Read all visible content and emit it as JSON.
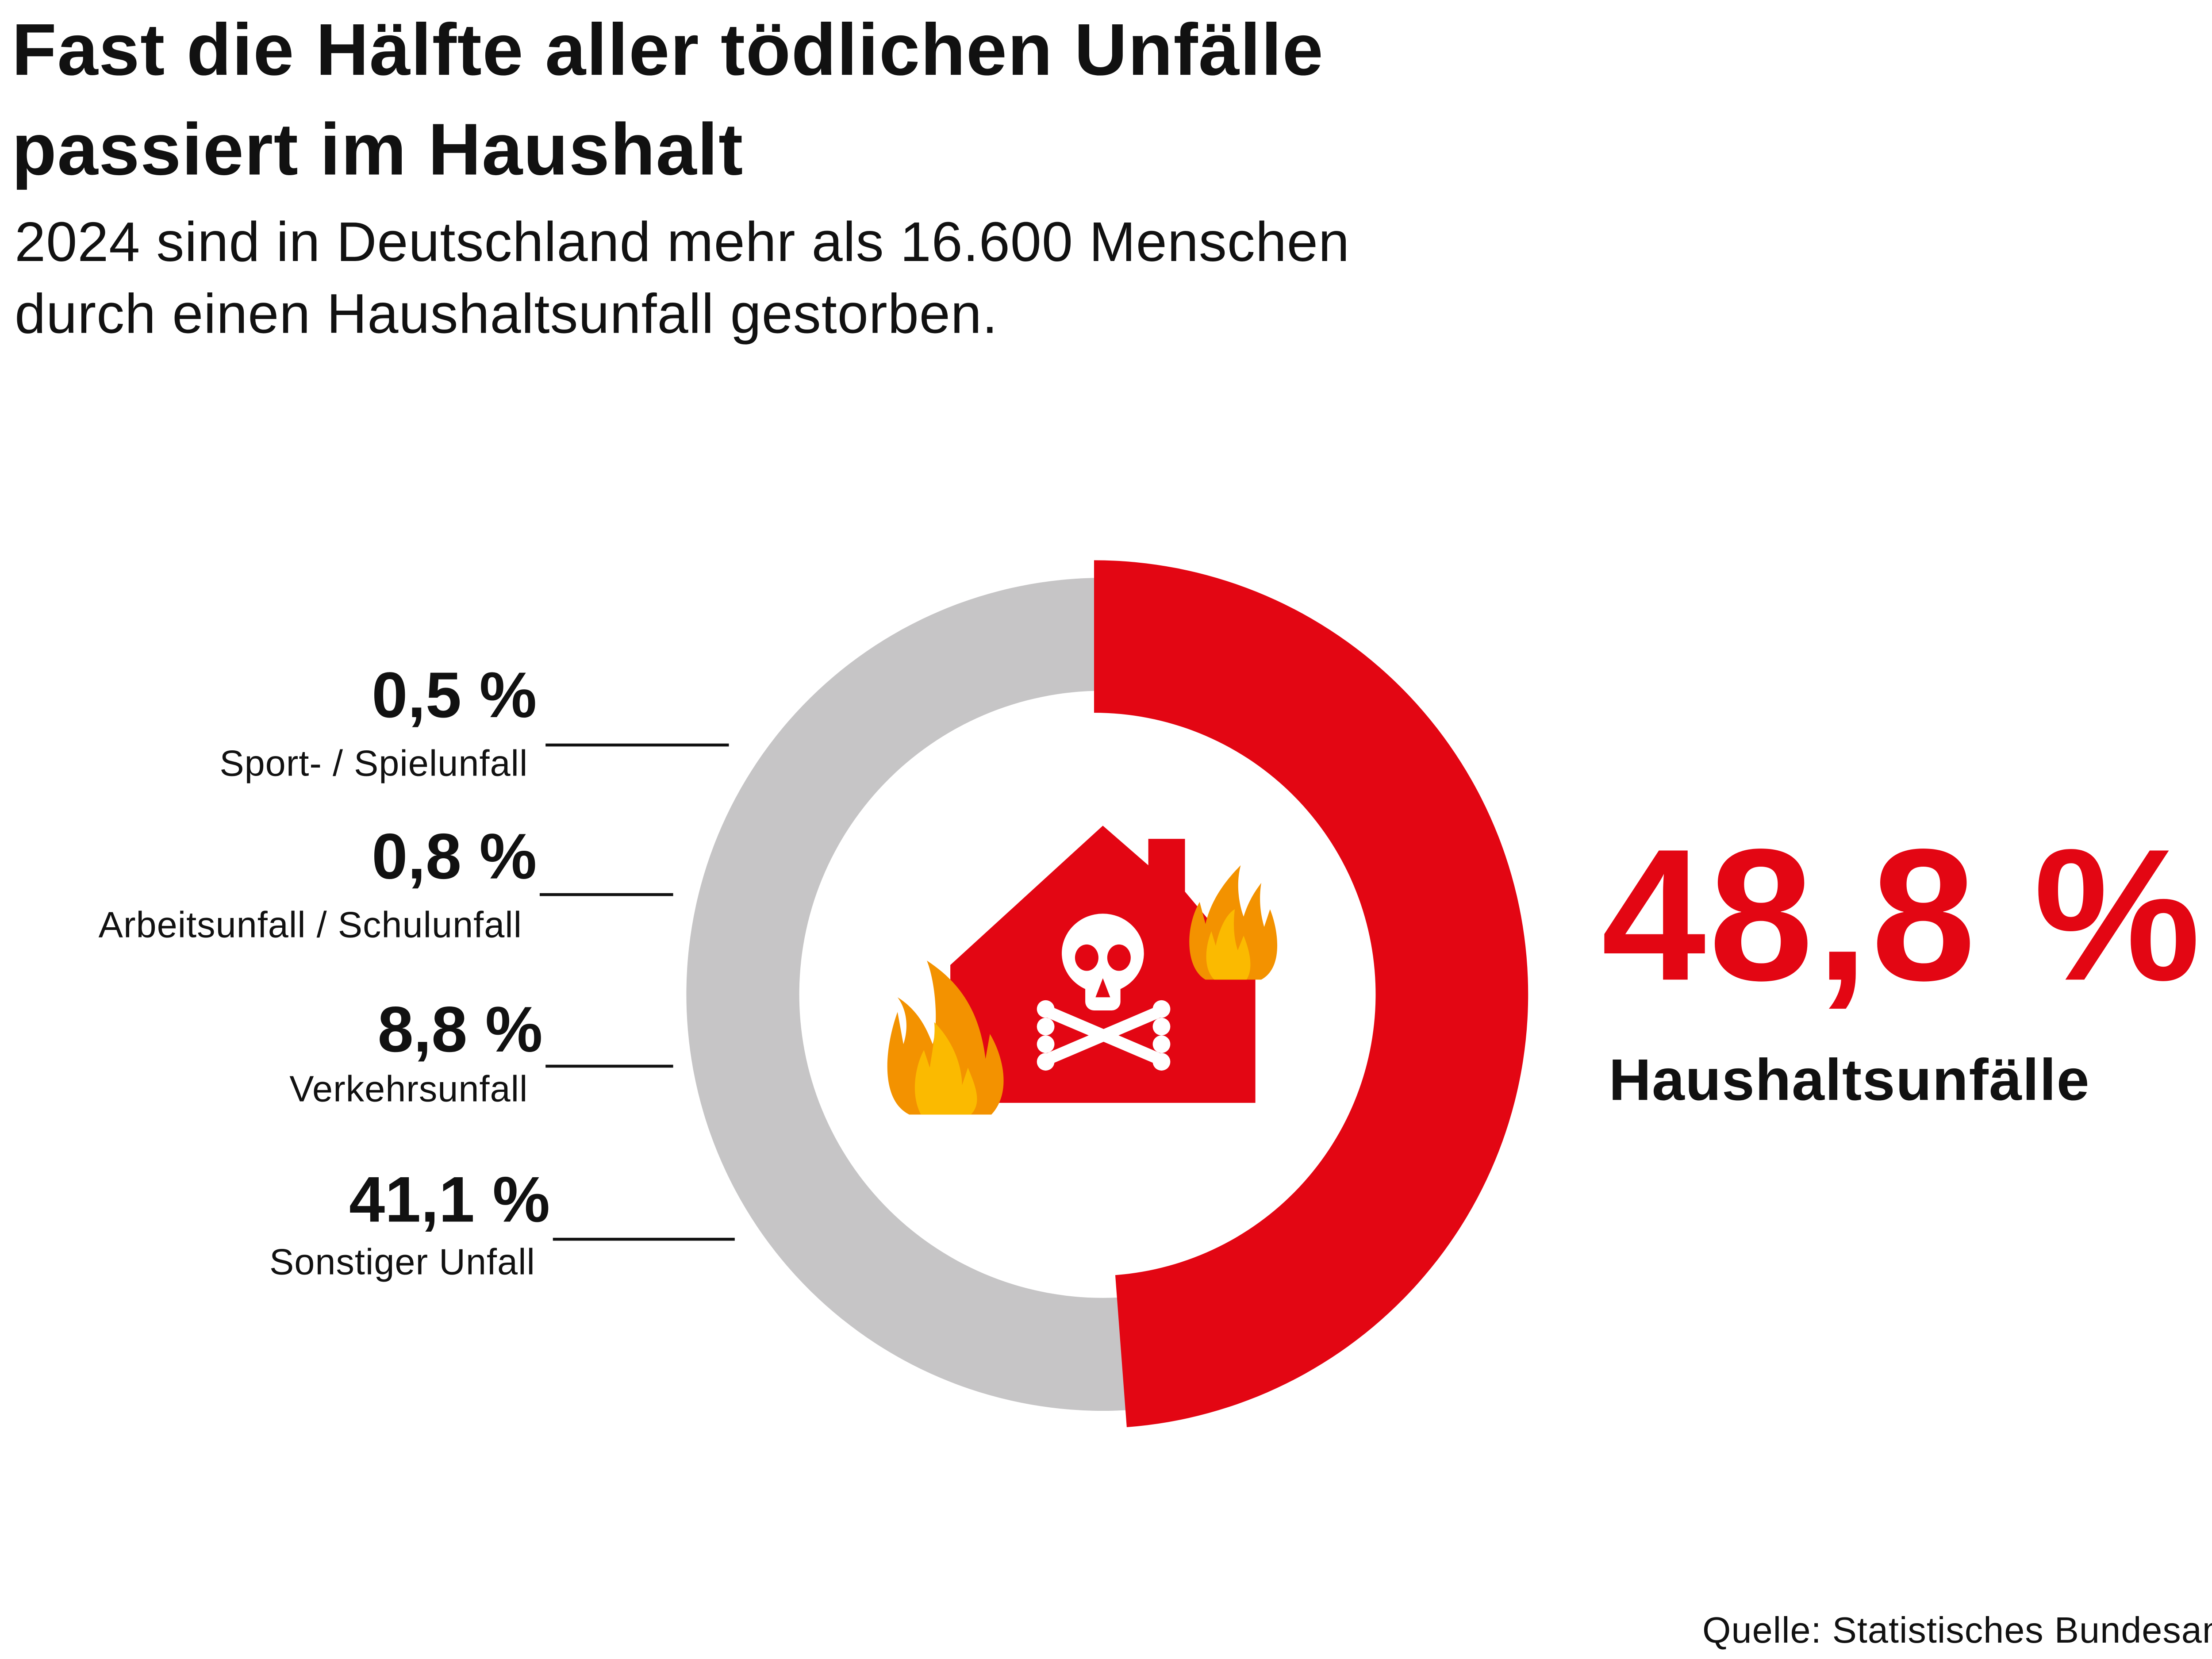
{
  "header": {
    "title_line1": "Fast die Hälfte aller tödlichen Unfälle",
    "title_line2": "passiert im Haushalt",
    "subtitle_line1": "2024 sind in Deutschland mehr als 16.600 Menschen",
    "subtitle_line2": "durch einen Haushaltsunfall gestorben."
  },
  "chart_data": {
    "type": "pie",
    "style": "donut",
    "title": "Fast die Hälfte aller tödlichen Unfälle passiert im Haushalt",
    "unit": "%",
    "categories": [
      "Haushaltsunfälle",
      "Sonstiger Unfall",
      "Verkehrsunfall",
      "Arbeitsunfall / Schulunfall",
      "Sport- / Spielunfall"
    ],
    "values": [
      48.8,
      41.1,
      8.8,
      0.8,
      0.5
    ],
    "labels": [
      "48,8 %",
      "41,1 %",
      "8,8 %",
      "0,8 %",
      "0,5 %"
    ],
    "highlight": "Haushaltsunfälle"
  },
  "colors": {
    "highlight": "#e30613",
    "rest": "#c6c5c6",
    "flame_outer": "#f39200",
    "flame_inner": "#fbba00"
  },
  "center_icon": "burning-house-skull-icon",
  "source": "Quelle: Statistisches Bundesamt"
}
